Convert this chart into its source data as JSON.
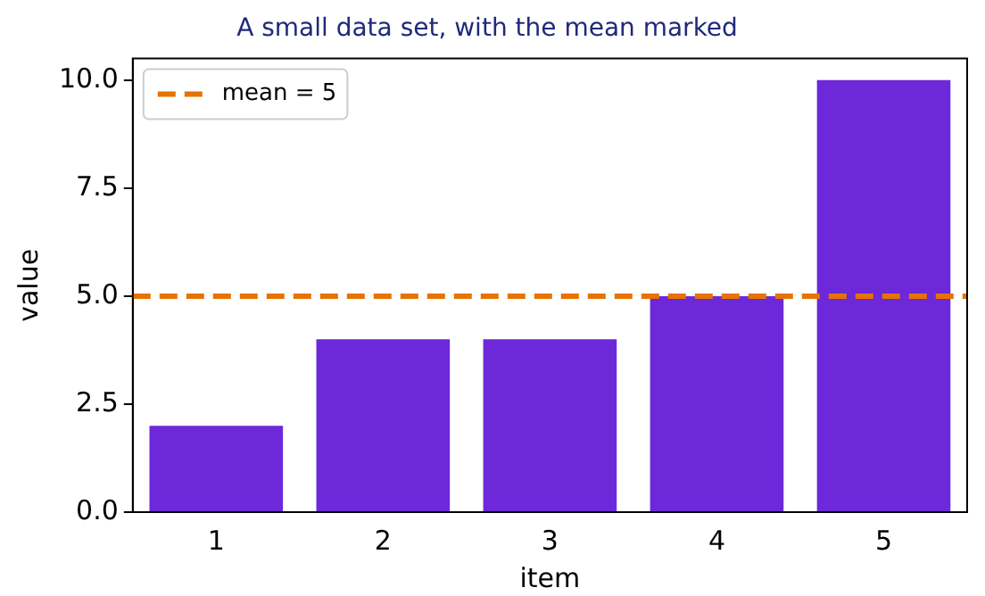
{
  "chart_data": {
    "type": "bar",
    "title": "A small data set, with the mean marked",
    "xlabel": "item",
    "ylabel": "value",
    "categories": [
      "1",
      "2",
      "3",
      "4",
      "5"
    ],
    "values": [
      2,
      4,
      4,
      5,
      10
    ],
    "color": "#6d28d9",
    "ylim": [
      0,
      10.5
    ],
    "yticks": [
      {
        "value": 0,
        "label": "0.0"
      },
      {
        "value": 2.5,
        "label": "2.5"
      },
      {
        "value": 5,
        "label": "5.0"
      },
      {
        "value": 7.5,
        "label": "7.5"
      },
      {
        "value": 10,
        "label": "10.0"
      }
    ],
    "ref_lines": [
      {
        "axis": "y",
        "value": 5,
        "label": "mean = 5",
        "color": "#e67300",
        "line_style": "dashed"
      }
    ],
    "legend": "top left",
    "grid": false
  }
}
